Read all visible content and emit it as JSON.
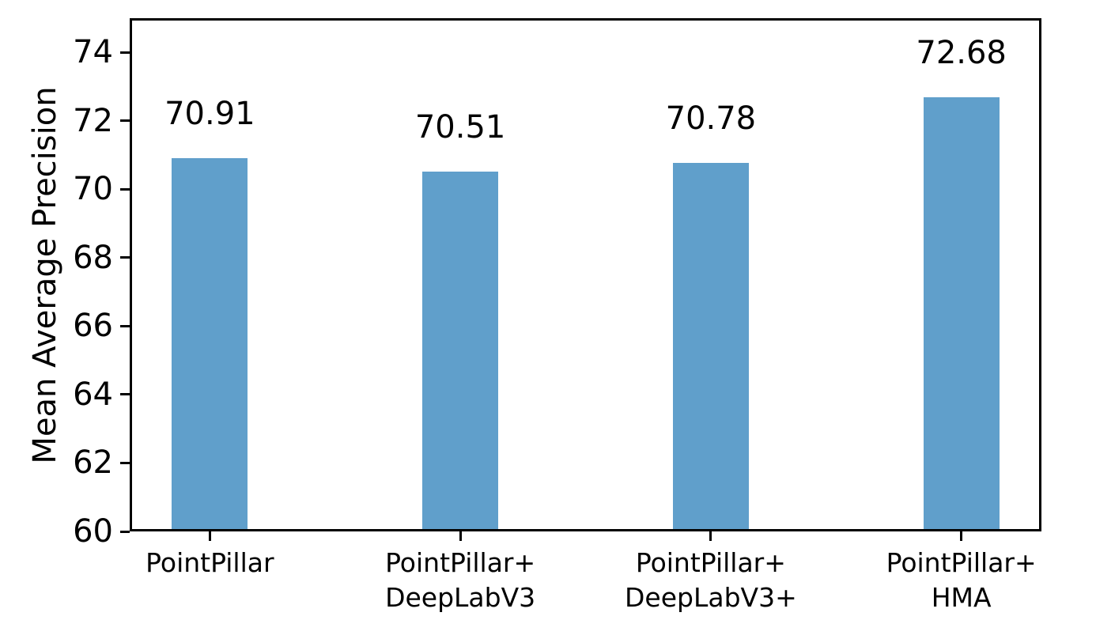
{
  "chart_data": {
    "type": "bar",
    "title": "",
    "xlabel": "",
    "ylabel": "Mean Average Precision",
    "categories": [
      "PointPillar",
      "PointPillar+\nDeepLabV3",
      "PointPillar+\nDeepLabV3+",
      "PointPillar+\nHMA"
    ],
    "values": [
      70.91,
      70.51,
      70.78,
      72.68
    ],
    "bar_labels": [
      "70.91",
      "70.51",
      "70.78",
      "72.68"
    ],
    "ylim": [
      60,
      75
    ],
    "yticks": [
      60,
      62,
      64,
      66,
      68,
      70,
      72,
      74
    ],
    "grid": false,
    "legend": null,
    "bar_color": "#609fcb",
    "axis_color": "#000000",
    "text_color": "#000000",
    "background_color": "#ffffff"
  }
}
